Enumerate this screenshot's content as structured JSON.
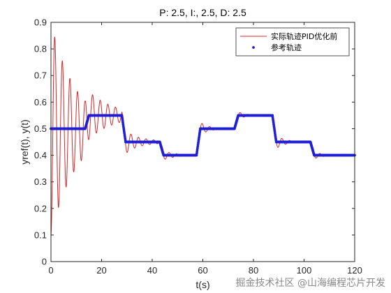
{
  "colors": {
    "response": "#d62728",
    "reference": "#1f1fd6",
    "axes": "#262626",
    "background": "#ffffff"
  },
  "watermark": "掘金技术社区 @山海编程芯片开发",
  "chart_data": {
    "type": "line",
    "title": "P: 2.5, I:, 2.5, D: 2.5",
    "xlabel": "t(s)",
    "ylabel": "yref(t), y(t)",
    "xlim": [
      0,
      120
    ],
    "ylim": [
      0,
      0.9
    ],
    "xticks": [
      0,
      20,
      40,
      60,
      80,
      100,
      120
    ],
    "yticks": [
      0,
      0.1,
      0.2,
      0.3,
      0.4,
      0.5,
      0.6,
      0.7,
      0.8,
      0.9
    ],
    "grid": false,
    "legend_position": "top-right",
    "series": [
      {
        "name": "实际轨迹PID优化前",
        "style": "line",
        "color": "#d62728",
        "oscillation": {
          "initial_value": 0.1,
          "initial_peak": 0.87,
          "period": 3.0,
          "initial_envelope": 0.4,
          "initial_decay_time": 10,
          "step_overshoot": 0.25,
          "step_decay_time": 3.5
        }
      },
      {
        "name": "参考轨迹",
        "style": "dots",
        "color": "#1f1fd6",
        "ramp_duration": 1.5,
        "segments": [
          {
            "t_start": 0,
            "t_end": 13.5,
            "value": 0.5
          },
          {
            "t_start": 15,
            "t_end": 28,
            "value": 0.55
          },
          {
            "t_start": 29.5,
            "t_end": 43,
            "value": 0.45
          },
          {
            "t_start": 44.5,
            "t_end": 57.5,
            "value": 0.4
          },
          {
            "t_start": 59,
            "t_end": 72.5,
            "value": 0.5
          },
          {
            "t_start": 74,
            "t_end": 87.5,
            "value": 0.55
          },
          {
            "t_start": 89,
            "t_end": 102.5,
            "value": 0.45
          },
          {
            "t_start": 104,
            "t_end": 120,
            "value": 0.4
          }
        ]
      }
    ]
  }
}
